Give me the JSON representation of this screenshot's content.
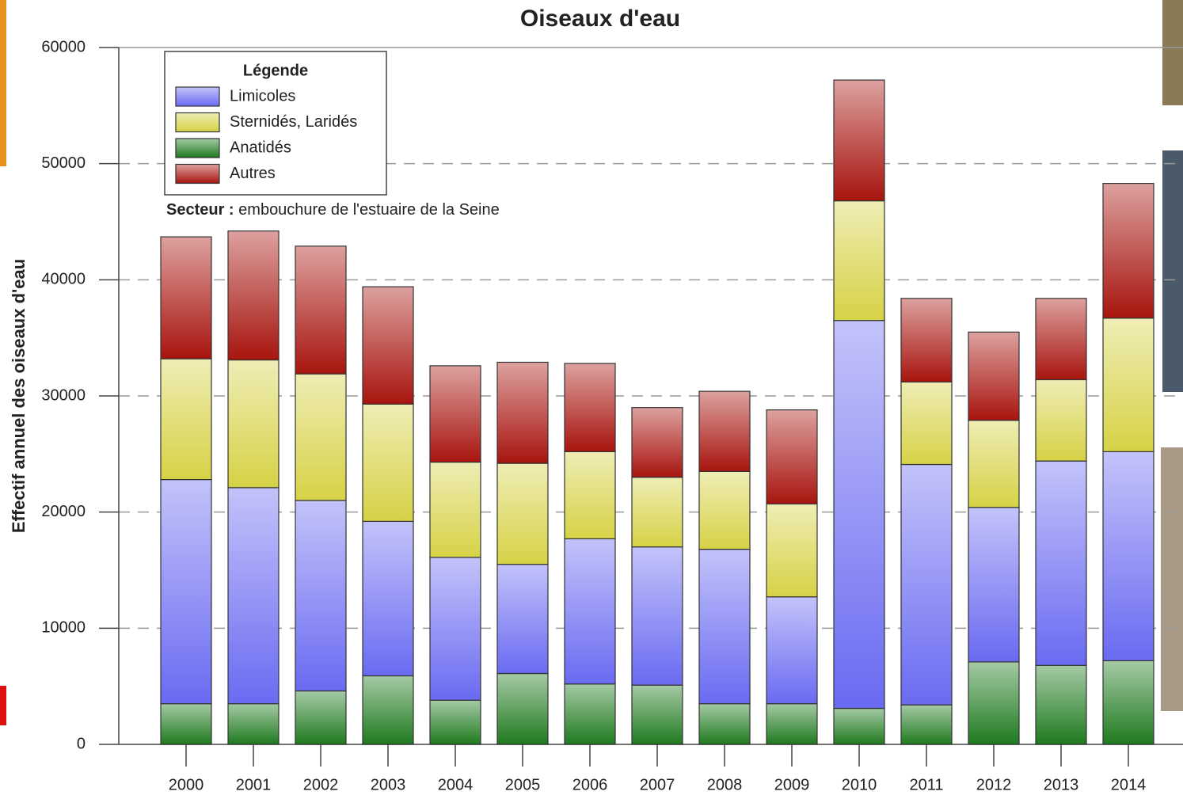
{
  "chart_data": {
    "type": "stacked-bar",
    "title": "Oiseaux d'eau",
    "y_label": "Effectif annuel des oiseaux d'eau",
    "legend_title": "Légende",
    "annotation_label": "Secteur :",
    "annotation": "embouchure de l'estuaire de la Seine",
    "categories": [
      "2000",
      "2001",
      "2002",
      "2003",
      "2004",
      "2005",
      "2006",
      "2007",
      "2008",
      "2009",
      "2010",
      "2011",
      "2012",
      "2013",
      "2014"
    ],
    "series": [
      {
        "name": "Limicoles",
        "color": "#6a6af2",
        "values": [
          19300,
          18600,
          16400,
          13300,
          12300,
          9400,
          12500,
          11900,
          13300,
          9200,
          33400,
          20700,
          13300,
          17600,
          18000
        ]
      },
      {
        "name": "Sternidés, Laridés",
        "color": "#d6d246",
        "values": [
          10400,
          11000,
          10900,
          10100,
          8200,
          8700,
          7500,
          6000,
          6700,
          8000,
          10300,
          7100,
          7500,
          7000,
          11500
        ]
      },
      {
        "name": "Anatidés",
        "color": "#1f7a1f",
        "values": [
          3500,
          3500,
          4600,
          5900,
          3800,
          6100,
          5200,
          5100,
          3500,
          3500,
          3100,
          3400,
          7100,
          6800,
          7200
        ]
      },
      {
        "name": "Autres",
        "color": "#a8140e",
        "values": [
          10500,
          11100,
          11000,
          10100,
          8300,
          8700,
          7600,
          6000,
          6900,
          8100,
          10400,
          7200,
          7600,
          7000,
          11600
        ]
      }
    ],
    "ylim": [
      0,
      60000
    ],
    "yticks": [
      0,
      10000,
      20000,
      30000,
      40000,
      50000,
      60000
    ],
    "grid": true
  }
}
